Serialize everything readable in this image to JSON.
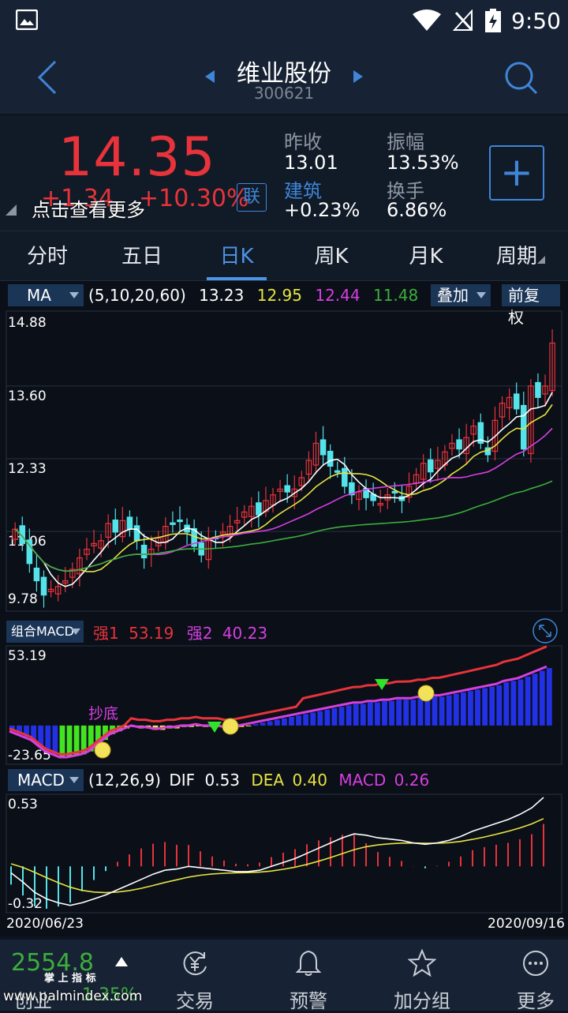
{
  "status_bar": {
    "time": "9:50"
  },
  "header": {
    "stock_name": "维业股份",
    "stock_code": "300621"
  },
  "quote": {
    "price": "14.35",
    "change": "+1.34",
    "change_pct": "+10.30%",
    "link_badge": "联",
    "tap_hint": "点击查看更多",
    "prev_close_label": "昨收",
    "prev_close": "13.01",
    "amplitude_label": "振幅",
    "amplitude": "13.53%",
    "sector_label": "建筑",
    "sector_change": "+0.23%",
    "turnover_label": "换手",
    "turnover": "6.86%",
    "add_label": "+"
  },
  "tabs": [
    "分时",
    "五日",
    "日K",
    "周K",
    "月K",
    "周期"
  ],
  "active_tab": "日K",
  "kline": {
    "indicator": "MA",
    "params": "(5,10,20,60)",
    "ma5": "13.23",
    "ma10": "12.95",
    "ma20": "12.44",
    "ma60": "11.48",
    "overlay_label": "叠加",
    "adjust_label": "前复权",
    "price_ticks": [
      "14.88",
      "13.60",
      "12.33",
      "11.06",
      "9.78"
    ],
    "colors": {
      "up": "#e8333a",
      "down": "#55e3ea",
      "ma5": "#ffffff",
      "ma10": "#e7e341",
      "ma20": "#d63fe0",
      "ma60": "#3cae3c"
    }
  },
  "combo": {
    "indicator": "组合MACD",
    "q1_label": "强1",
    "q1_value": "53.19",
    "q2_label": "强2",
    "q2_value": "40.23",
    "top_tick": "53.19",
    "bottom_tick": "-23.65",
    "signal_text": "抄底"
  },
  "macd": {
    "indicator": "MACD",
    "params": "(12,26,9)",
    "dif_label": "DIF",
    "dif": "0.53",
    "dea_label": "DEA",
    "dea": "0.40",
    "macd_label": "MACD",
    "macd": "0.26",
    "top_tick": "0.53",
    "bottom_tick": "-0.32",
    "start_date": "2020/06/23",
    "end_date": "2020/09/16"
  },
  "bottom_nav": {
    "index_value": "2554.8",
    "index_name": "创业",
    "index_pct": "1.35%",
    "watermark_line1": "掌 上 指 标",
    "watermark_line2": "www.palmindex.com",
    "items": [
      "交易",
      "预警",
      "加分组",
      "更多"
    ]
  }
}
